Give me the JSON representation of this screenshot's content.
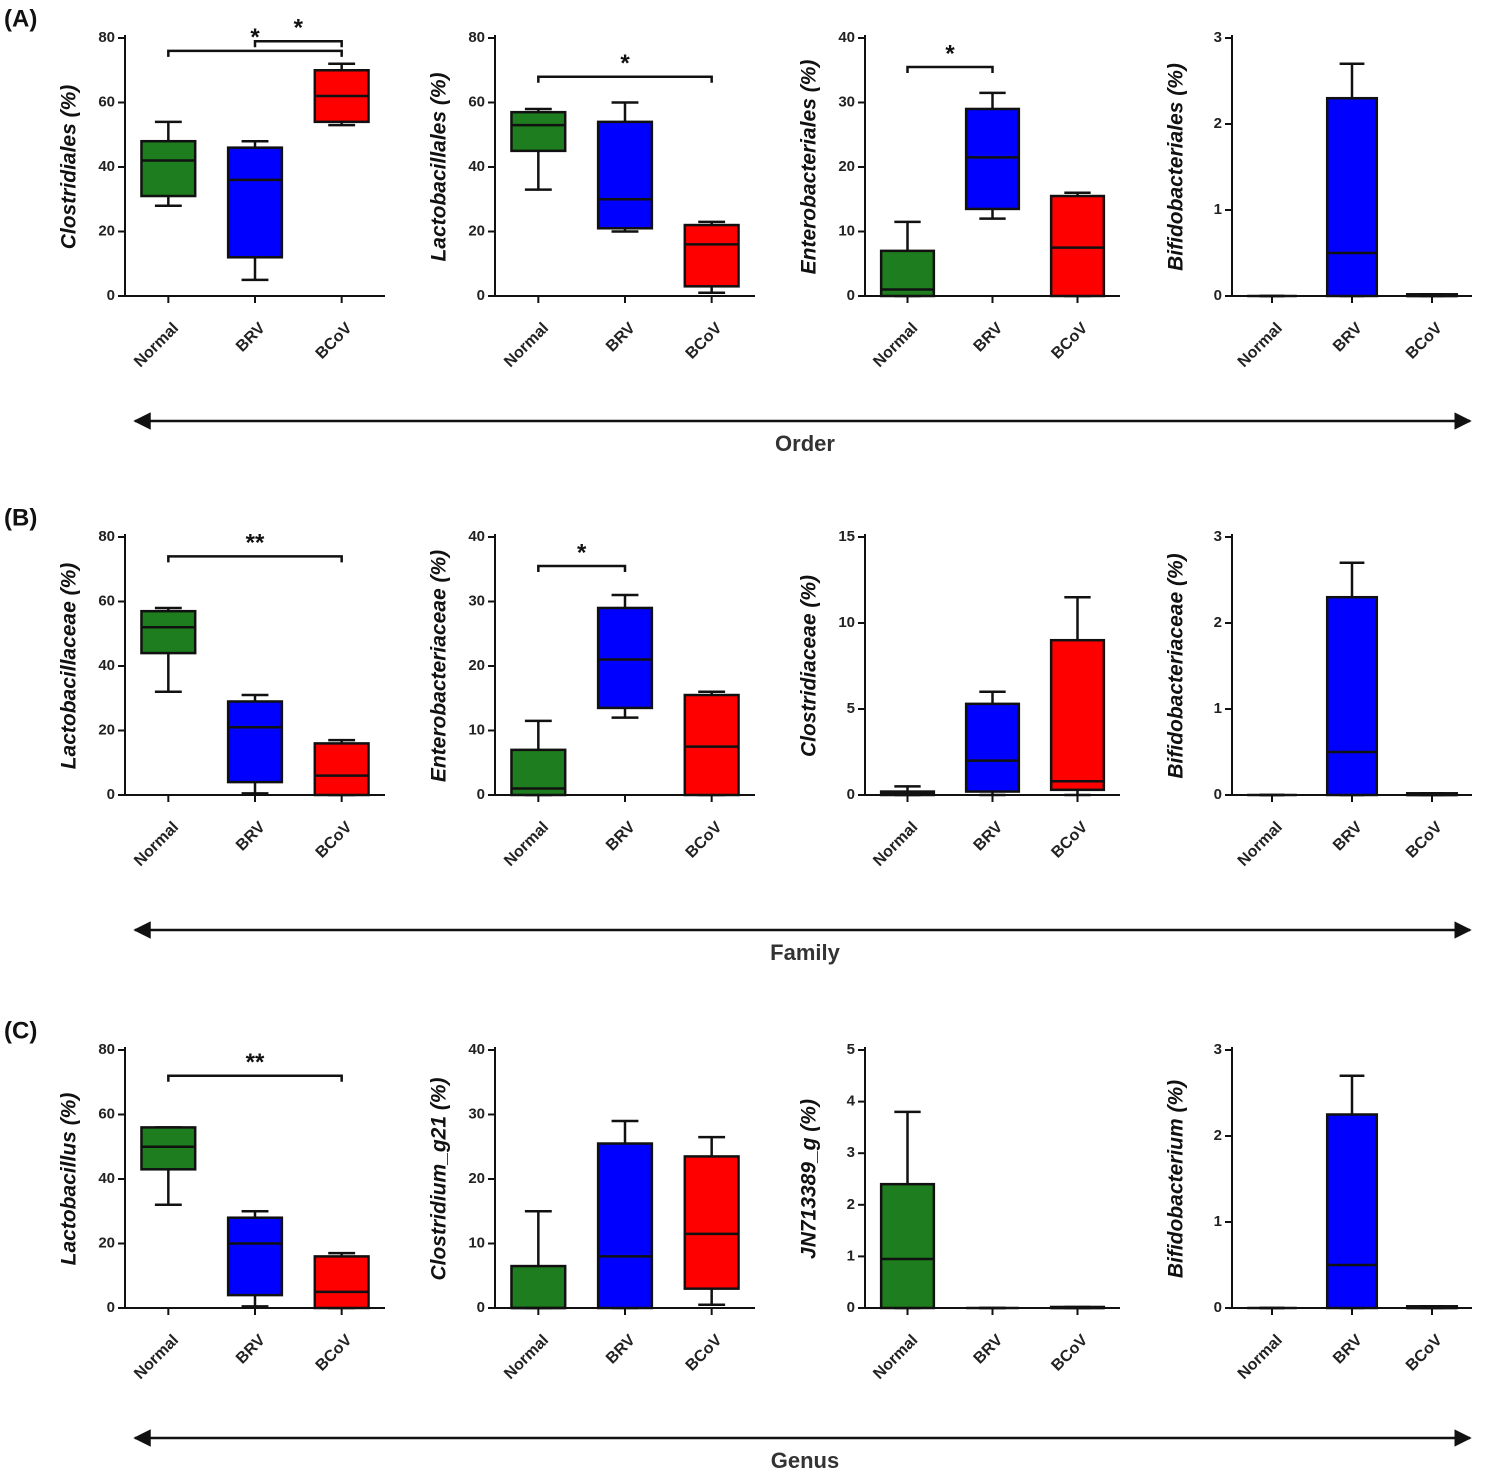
{
  "panels": [
    {
      "label": "(A)",
      "level": "Order"
    },
    {
      "label": "(B)",
      "level": "Family"
    },
    {
      "label": "(C)",
      "level": "Genus"
    }
  ],
  "chart_data": [
    {
      "type": "box",
      "ylabel": "Clostridiales (%)",
      "categories": [
        "Normal",
        "BRV",
        "BCoV"
      ],
      "colors": [
        "#1e7d1e",
        "#0000ff",
        "#ff0000"
      ],
      "min": [
        28,
        5,
        53
      ],
      "q1": [
        31,
        12,
        54
      ],
      "median": [
        42,
        36,
        62
      ],
      "q3": [
        48,
        46,
        70
      ],
      "max": [
        54,
        48,
        72
      ],
      "ylim": [
        0,
        80
      ],
      "yticks": [
        0,
        20,
        40,
        60,
        80
      ],
      "annotations": [
        {
          "text": "*",
          "between": [
            0,
            2
          ],
          "y": 76
        },
        {
          "text": "*",
          "between": [
            1,
            2
          ],
          "y": 79
        }
      ]
    },
    {
      "type": "box",
      "ylabel": "Lactobacillales (%)",
      "categories": [
        "Normal",
        "BRV",
        "BCoV"
      ],
      "colors": [
        "#1e7d1e",
        "#0000ff",
        "#ff0000"
      ],
      "min": [
        33,
        20,
        1
      ],
      "q1": [
        45,
        21,
        3
      ],
      "median": [
        53,
        30,
        16
      ],
      "q3": [
        57,
        54,
        22
      ],
      "max": [
        58,
        60,
        23
      ],
      "ylim": [
        0,
        80
      ],
      "yticks": [
        0,
        20,
        40,
        60,
        80
      ],
      "annotations": [
        {
          "text": "*",
          "between": [
            0,
            2
          ],
          "y": 68
        }
      ]
    },
    {
      "type": "box",
      "ylabel": "Enterobacteriales (%)",
      "categories": [
        "Normal",
        "BRV",
        "BCoV"
      ],
      "colors": [
        "#1e7d1e",
        "#0000ff",
        "#ff0000"
      ],
      "min": [
        0,
        12,
        0
      ],
      "q1": [
        0,
        13.5,
        0
      ],
      "median": [
        1,
        21.5,
        7.5
      ],
      "q3": [
        7,
        29,
        15.5
      ],
      "max": [
        11.5,
        31.5,
        16
      ],
      "ylim": [
        0,
        40
      ],
      "yticks": [
        0,
        10,
        20,
        30,
        40
      ],
      "annotations": [
        {
          "text": "*",
          "between": [
            0,
            1
          ],
          "y": 35.5
        }
      ]
    },
    {
      "type": "box",
      "ylabel": "Bifidobacteriales (%)",
      "categories": [
        "Normal",
        "BRV",
        "BCoV"
      ],
      "colors": [
        "#1e7d1e",
        "#0000ff",
        "#ff0000"
      ],
      "min": [
        0,
        0,
        0
      ],
      "q1": [
        0,
        0,
        0
      ],
      "median": [
        0,
        0.5,
        0
      ],
      "q3": [
        0,
        2.3,
        0.02
      ],
      "max": [
        0,
        2.7,
        0.02
      ],
      "ylim": [
        0,
        3
      ],
      "yticks": [
        0,
        1,
        2,
        3
      ],
      "annotations": []
    },
    {
      "type": "box",
      "ylabel": "Lactobacillaceae (%)",
      "categories": [
        "Normal",
        "BRV",
        "BCoV"
      ],
      "colors": [
        "#1e7d1e",
        "#0000ff",
        "#ff0000"
      ],
      "min": [
        32,
        0.5,
        0
      ],
      "q1": [
        44,
        4,
        0
      ],
      "median": [
        52,
        21,
        6
      ],
      "q3": [
        57,
        29,
        16
      ],
      "max": [
        58,
        31,
        17
      ],
      "ylim": [
        0,
        80
      ],
      "yticks": [
        0,
        20,
        40,
        60,
        80
      ],
      "annotations": [
        {
          "text": "**",
          "between": [
            0,
            2
          ],
          "y": 74
        }
      ]
    },
    {
      "type": "box",
      "ylabel": "Enterobacteriaceae (%)",
      "categories": [
        "Normal",
        "BRV",
        "BCoV"
      ],
      "colors": [
        "#1e7d1e",
        "#0000ff",
        "#ff0000"
      ],
      "min": [
        0,
        12,
        0
      ],
      "q1": [
        0,
        13.5,
        0
      ],
      "median": [
        1,
        21,
        7.5
      ],
      "q3": [
        7,
        29,
        15.5
      ],
      "max": [
        11.5,
        31,
        16
      ],
      "ylim": [
        0,
        40
      ],
      "yticks": [
        0,
        10,
        20,
        30,
        40
      ],
      "annotations": [
        {
          "text": "*",
          "between": [
            0,
            1
          ],
          "y": 35.5
        }
      ]
    },
    {
      "type": "box",
      "ylabel": "Clostridiaceae (%)",
      "categories": [
        "Normal",
        "BRV",
        "BCoV"
      ],
      "colors": [
        "#1e7d1e",
        "#0000ff",
        "#ff0000"
      ],
      "min": [
        0,
        0,
        0
      ],
      "q1": [
        0,
        0.2,
        0.3
      ],
      "median": [
        0.1,
        2,
        0.8
      ],
      "q3": [
        0.2,
        5.3,
        9
      ],
      "max": [
        0.5,
        6,
        11.5
      ],
      "ylim": [
        0,
        15
      ],
      "yticks": [
        0,
        5,
        10,
        15
      ],
      "annotations": []
    },
    {
      "type": "box",
      "ylabel": "Bifidobacteriaceae (%)",
      "categories": [
        "Normal",
        "BRV",
        "BCoV"
      ],
      "colors": [
        "#1e7d1e",
        "#0000ff",
        "#ff0000"
      ],
      "min": [
        0,
        0,
        0
      ],
      "q1": [
        0,
        0,
        0
      ],
      "median": [
        0,
        0.5,
        0
      ],
      "q3": [
        0,
        2.3,
        0.02
      ],
      "max": [
        0,
        2.7,
        0.02
      ],
      "ylim": [
        0,
        3
      ],
      "yticks": [
        0,
        1,
        2,
        3
      ],
      "annotations": []
    },
    {
      "type": "box",
      "ylabel": "Lactobacillus (%)",
      "categories": [
        "Normal",
        "BRV",
        "BCoV"
      ],
      "colors": [
        "#1e7d1e",
        "#0000ff",
        "#ff0000"
      ],
      "min": [
        32,
        0.5,
        0
      ],
      "q1": [
        43,
        4,
        0
      ],
      "median": [
        50,
        20,
        5
      ],
      "q3": [
        56,
        28,
        16
      ],
      "max": [
        56,
        30,
        17
      ],
      "ylim": [
        0,
        80
      ],
      "yticks": [
        0,
        20,
        40,
        60,
        80
      ],
      "annotations": [
        {
          "text": "**",
          "between": [
            0,
            2
          ],
          "y": 72
        }
      ]
    },
    {
      "type": "box",
      "ylabel": "Clostridium_g21 (%)",
      "categories": [
        "Normal",
        "BRV",
        "BCoV"
      ],
      "colors": [
        "#1e7d1e",
        "#0000ff",
        "#ff0000"
      ],
      "min": [
        0,
        0,
        0.5
      ],
      "q1": [
        0,
        0,
        3
      ],
      "median": [
        0,
        8,
        11.5
      ],
      "q3": [
        6.5,
        25.5,
        23.5
      ],
      "max": [
        15,
        29,
        26.5
      ],
      "ylim": [
        0,
        40
      ],
      "yticks": [
        0,
        10,
        20,
        30,
        40
      ],
      "annotations": []
    },
    {
      "type": "box",
      "ylabel": "JN713389_g (%)",
      "categories": [
        "Normal",
        "BRV",
        "BCoV"
      ],
      "colors": [
        "#1e7d1e",
        "#0000ff",
        "#ff0000"
      ],
      "min": [
        0,
        0,
        0
      ],
      "q1": [
        0,
        0,
        0
      ],
      "median": [
        0.95,
        0,
        0
      ],
      "q3": [
        2.4,
        0,
        0.02
      ],
      "max": [
        3.8,
        0,
        0.02
      ],
      "ylim": [
        0,
        5
      ],
      "yticks": [
        0,
        1,
        2,
        3,
        4,
        5
      ],
      "annotations": []
    },
    {
      "type": "box",
      "ylabel": "Bifidobacterium (%)",
      "categories": [
        "Normal",
        "BRV",
        "BCoV"
      ],
      "colors": [
        "#1e7d1e",
        "#0000ff",
        "#ff0000"
      ],
      "min": [
        0,
        0,
        0
      ],
      "q1": [
        0,
        0,
        0
      ],
      "median": [
        0,
        0.5,
        0
      ],
      "q3": [
        0,
        2.25,
        0.02
      ],
      "max": [
        0,
        2.7,
        0.02
      ],
      "ylim": [
        0,
        3
      ],
      "yticks": [
        0,
        1,
        2,
        3
      ],
      "annotations": []
    }
  ]
}
